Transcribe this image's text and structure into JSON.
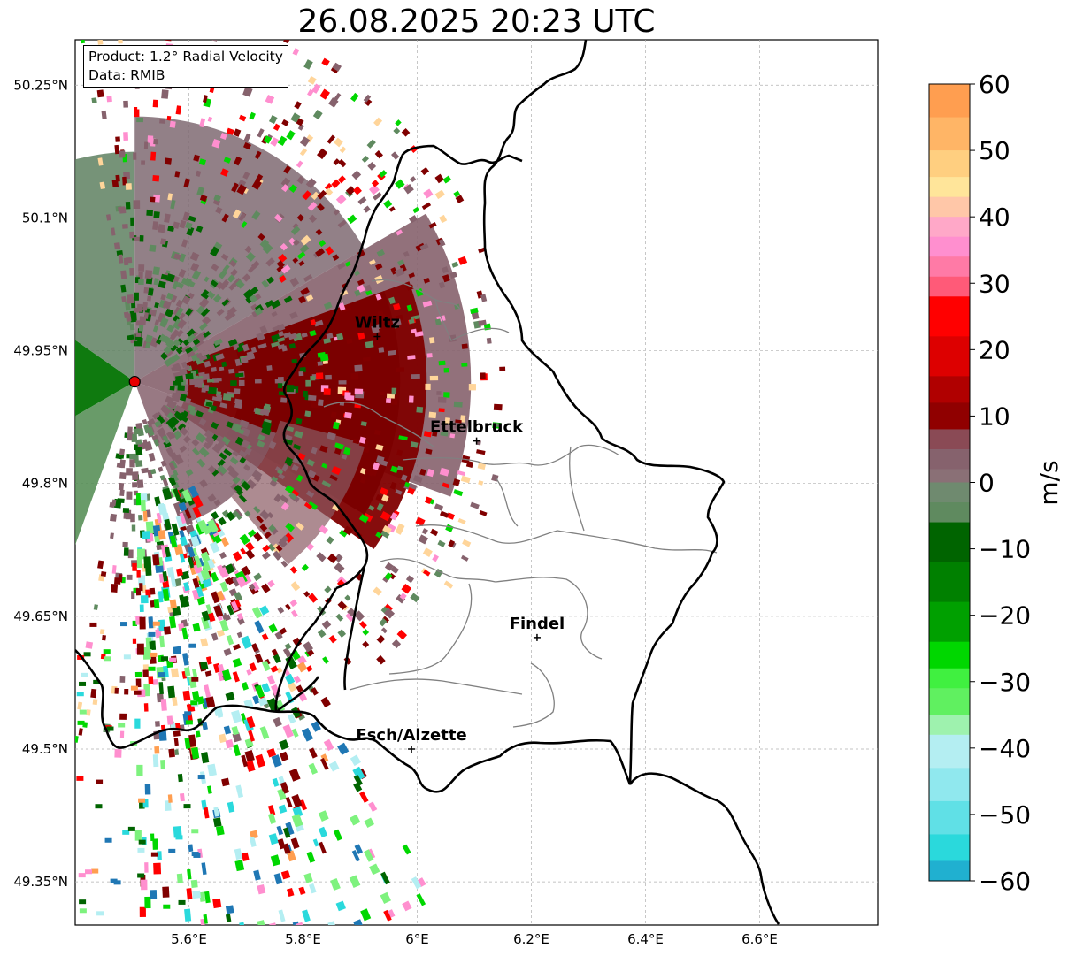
{
  "title": "26.08.2025 20:23 UTC",
  "info": {
    "product": "Product: 1.2° Radial Velocity",
    "source": "Data: RMIB"
  },
  "lat_ticks": [
    {
      "value": 50.25,
      "label": "50.25°N"
    },
    {
      "value": 50.1,
      "label": "50.1°N"
    },
    {
      "value": 49.95,
      "label": "49.95°N"
    },
    {
      "value": 49.8,
      "label": "49.8°N"
    },
    {
      "value": 49.65,
      "label": "49.65°N"
    },
    {
      "value": 49.5,
      "label": "49.5°N"
    },
    {
      "value": 49.35,
      "label": "49.35°N"
    }
  ],
  "lon_ticks": [
    {
      "value": 5.6,
      "label": "5.6°E"
    },
    {
      "value": 5.8,
      "label": "5.8°E"
    },
    {
      "value": 6.0,
      "label": "6°E"
    },
    {
      "value": 6.2,
      "label": "6.2°E"
    },
    {
      "value": 6.4,
      "label": "6.4°E"
    },
    {
      "value": 6.6,
      "label": "6.6°E"
    }
  ],
  "cities": [
    {
      "name": "Wiltz",
      "lon": 5.93,
      "lat": 49.966
    },
    {
      "name": "Ettelbruck",
      "lon": 6.104,
      "lat": 49.848
    },
    {
      "name": "Findel",
      "lon": 6.21,
      "lat": 49.626
    },
    {
      "name": "Esch/Alzette",
      "lon": 5.99,
      "lat": 49.5
    }
  ],
  "radar_site": {
    "lon": 5.505,
    "lat": 49.915
  },
  "colorbar": {
    "label": "m/s",
    "min": -60,
    "max": 60,
    "ticks": [
      {
        "value": 60,
        "label": "60"
      },
      {
        "value": 50,
        "label": "50"
      },
      {
        "value": 40,
        "label": "40"
      },
      {
        "value": 30,
        "label": "30"
      },
      {
        "value": 20,
        "label": "20"
      },
      {
        "value": 10,
        "label": "10"
      },
      {
        "value": 0,
        "label": "0"
      },
      {
        "value": -10,
        "label": "−10"
      },
      {
        "value": -20,
        "label": "−20"
      },
      {
        "value": -30,
        "label": "−30"
      },
      {
        "value": -40,
        "label": "−40"
      },
      {
        "value": -50,
        "label": "−50"
      },
      {
        "value": -60,
        "label": "−60"
      }
    ]
  },
  "colors": {
    "strong_toward": "#1f77b4",
    "cyan": "#2ad9dc",
    "light_cyan": "#b4eef2",
    "green_light": "#7ef27e",
    "green": "#00d700",
    "dark_green": "#006400",
    "grey_green": "#5f8a5f",
    "grey_red": "#86626d",
    "dark_red": "#800000",
    "red": "#ff0000",
    "pink": "#ff8fcf",
    "peach": "#ffd59a",
    "orange": "#ff9e50"
  }
}
